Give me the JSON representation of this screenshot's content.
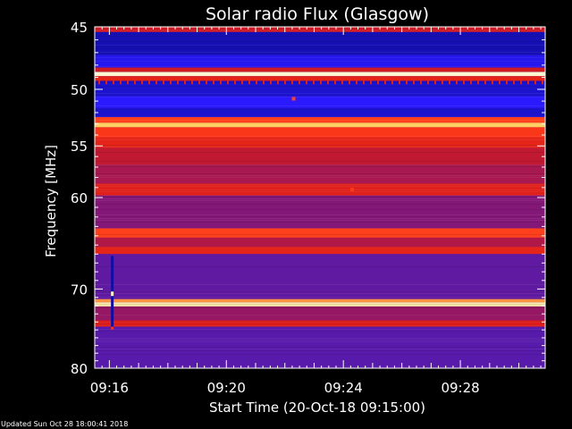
{
  "chart_data": {
    "type": "heatmap",
    "title": "Solar radio Flux (Glasgow)",
    "ylabel": "Frequency [MHz]",
    "xlabel": "Start Time (20-Oct-18 09:15:00)",
    "ylim": [
      45,
      80
    ],
    "y_direction": "increasing-downward",
    "y_ticks": [
      "45",
      "50",
      "55",
      "60",
      "70",
      "80"
    ],
    "y_tick_values": [
      45,
      50,
      55,
      60,
      70,
      80
    ],
    "y_scale": "log",
    "xlim_minutes": [
      15.5,
      30.9
    ],
    "x_ticks": [
      "09:16",
      "09:20",
      "09:24",
      "09:28"
    ],
    "x_tick_minutes": [
      16,
      20,
      24,
      28
    ],
    "colormap": [
      "#0a0a8c",
      "#2b1aff",
      "#5a1aa8",
      "#9a1760",
      "#d81a1a",
      "#ff3a1a",
      "#ffd060",
      "#ffffe6"
    ],
    "bands": [
      {
        "f0": 45.0,
        "f1": 45.4,
        "level": 0.55
      },
      {
        "f0": 45.4,
        "f1": 47.2,
        "level": 0.05
      },
      {
        "f0": 47.2,
        "f1": 48.2,
        "level": 0.12
      },
      {
        "f0": 48.2,
        "f1": 48.55,
        "level": 0.55
      },
      {
        "f0": 48.55,
        "f1": 48.9,
        "level": 0.98
      },
      {
        "f0": 48.9,
        "f1": 49.3,
        "level": 0.62
      },
      {
        "f0": 49.3,
        "f1": 50.6,
        "level": 0.08
      },
      {
        "f0": 50.6,
        "f1": 51.6,
        "level": 0.14
      },
      {
        "f0": 51.6,
        "f1": 52.4,
        "level": 0.08
      },
      {
        "f0": 52.4,
        "f1": 52.9,
        "level": 0.72
      },
      {
        "f0": 52.9,
        "f1": 53.3,
        "level": 0.86
      },
      {
        "f0": 53.3,
        "f1": 54.2,
        "level": 0.7
      },
      {
        "f0": 54.2,
        "f1": 55.2,
        "level": 0.62
      },
      {
        "f0": 55.2,
        "f1": 56.8,
        "level": 0.52
      },
      {
        "f0": 56.8,
        "f1": 58.6,
        "level": 0.46
      },
      {
        "f0": 58.6,
        "f1": 59.8,
        "level": 0.6
      },
      {
        "f0": 59.8,
        "f1": 63.2,
        "level": 0.38
      },
      {
        "f0": 63.2,
        "f1": 64.2,
        "level": 0.72
      },
      {
        "f0": 64.2,
        "f1": 65.2,
        "level": 0.48
      },
      {
        "f0": 65.2,
        "f1": 66.0,
        "level": 0.62
      },
      {
        "f0": 66.0,
        "f1": 71.2,
        "level": 0.3
      },
      {
        "f0": 71.2,
        "f1": 71.6,
        "level": 0.8
      },
      {
        "f0": 71.6,
        "f1": 72.1,
        "level": 0.94
      },
      {
        "f0": 72.1,
        "f1": 73.8,
        "level": 0.42
      },
      {
        "f0": 73.8,
        "f1": 74.6,
        "level": 0.58
      },
      {
        "f0": 74.6,
        "f1": 80.0,
        "level": 0.28
      }
    ],
    "vertical_streak": {
      "minute": 16.1,
      "f0": 66.2,
      "f1": 74.8
    },
    "spots": [
      {
        "minute": 22.3,
        "freq": 50.8,
        "level": 0.72
      },
      {
        "minute": 24.3,
        "freq": 59.2,
        "level": 0.7
      }
    ],
    "footer": "Updated Sun Oct 28 18:00:41 2018"
  }
}
